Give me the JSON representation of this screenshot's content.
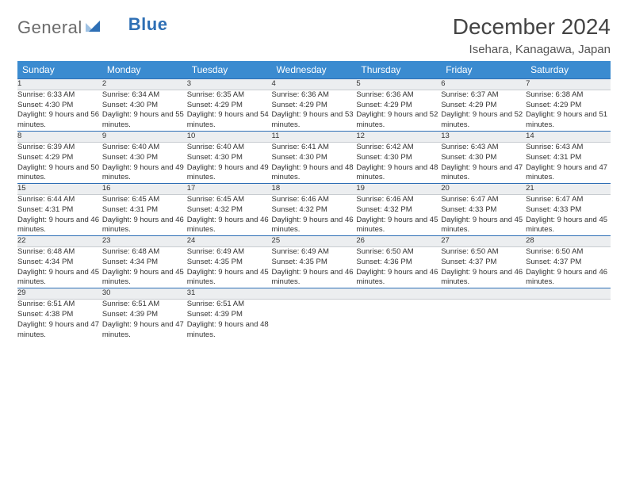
{
  "brand": {
    "part1": "General",
    "part2": "Blue"
  },
  "title": "December 2024",
  "location": "Isehara, Kanagawa, Japan",
  "colors": {
    "header_bg": "#3b8bd0",
    "header_text": "#ffffff",
    "daynum_bg": "#eceef0",
    "rule": "#2e6fb5",
    "body_text": "#333333",
    "title_text": "#444444",
    "logo_gray": "#6b6b6b",
    "logo_blue": "#2e6fb5"
  },
  "weekdays": [
    "Sunday",
    "Monday",
    "Tuesday",
    "Wednesday",
    "Thursday",
    "Friday",
    "Saturday"
  ],
  "labels": {
    "sunrise": "Sunrise",
    "sunset": "Sunset",
    "daylight": "Daylight"
  },
  "weeks": [
    [
      {
        "n": 1,
        "sr": "6:33 AM",
        "ss": "4:30 PM",
        "dl": "9 hours and 56 minutes."
      },
      {
        "n": 2,
        "sr": "6:34 AM",
        "ss": "4:30 PM",
        "dl": "9 hours and 55 minutes."
      },
      {
        "n": 3,
        "sr": "6:35 AM",
        "ss": "4:29 PM",
        "dl": "9 hours and 54 minutes."
      },
      {
        "n": 4,
        "sr": "6:36 AM",
        "ss": "4:29 PM",
        "dl": "9 hours and 53 minutes."
      },
      {
        "n": 5,
        "sr": "6:36 AM",
        "ss": "4:29 PM",
        "dl": "9 hours and 52 minutes."
      },
      {
        "n": 6,
        "sr": "6:37 AM",
        "ss": "4:29 PM",
        "dl": "9 hours and 52 minutes."
      },
      {
        "n": 7,
        "sr": "6:38 AM",
        "ss": "4:29 PM",
        "dl": "9 hours and 51 minutes."
      }
    ],
    [
      {
        "n": 8,
        "sr": "6:39 AM",
        "ss": "4:29 PM",
        "dl": "9 hours and 50 minutes."
      },
      {
        "n": 9,
        "sr": "6:40 AM",
        "ss": "4:30 PM",
        "dl": "9 hours and 49 minutes."
      },
      {
        "n": 10,
        "sr": "6:40 AM",
        "ss": "4:30 PM",
        "dl": "9 hours and 49 minutes."
      },
      {
        "n": 11,
        "sr": "6:41 AM",
        "ss": "4:30 PM",
        "dl": "9 hours and 48 minutes."
      },
      {
        "n": 12,
        "sr": "6:42 AM",
        "ss": "4:30 PM",
        "dl": "9 hours and 48 minutes."
      },
      {
        "n": 13,
        "sr": "6:43 AM",
        "ss": "4:30 PM",
        "dl": "9 hours and 47 minutes."
      },
      {
        "n": 14,
        "sr": "6:43 AM",
        "ss": "4:31 PM",
        "dl": "9 hours and 47 minutes."
      }
    ],
    [
      {
        "n": 15,
        "sr": "6:44 AM",
        "ss": "4:31 PM",
        "dl": "9 hours and 46 minutes."
      },
      {
        "n": 16,
        "sr": "6:45 AM",
        "ss": "4:31 PM",
        "dl": "9 hours and 46 minutes."
      },
      {
        "n": 17,
        "sr": "6:45 AM",
        "ss": "4:32 PM",
        "dl": "9 hours and 46 minutes."
      },
      {
        "n": 18,
        "sr": "6:46 AM",
        "ss": "4:32 PM",
        "dl": "9 hours and 46 minutes."
      },
      {
        "n": 19,
        "sr": "6:46 AM",
        "ss": "4:32 PM",
        "dl": "9 hours and 45 minutes."
      },
      {
        "n": 20,
        "sr": "6:47 AM",
        "ss": "4:33 PM",
        "dl": "9 hours and 45 minutes."
      },
      {
        "n": 21,
        "sr": "6:47 AM",
        "ss": "4:33 PM",
        "dl": "9 hours and 45 minutes."
      }
    ],
    [
      {
        "n": 22,
        "sr": "6:48 AM",
        "ss": "4:34 PM",
        "dl": "9 hours and 45 minutes."
      },
      {
        "n": 23,
        "sr": "6:48 AM",
        "ss": "4:34 PM",
        "dl": "9 hours and 45 minutes."
      },
      {
        "n": 24,
        "sr": "6:49 AM",
        "ss": "4:35 PM",
        "dl": "9 hours and 45 minutes."
      },
      {
        "n": 25,
        "sr": "6:49 AM",
        "ss": "4:35 PM",
        "dl": "9 hours and 46 minutes."
      },
      {
        "n": 26,
        "sr": "6:50 AM",
        "ss": "4:36 PM",
        "dl": "9 hours and 46 minutes."
      },
      {
        "n": 27,
        "sr": "6:50 AM",
        "ss": "4:37 PM",
        "dl": "9 hours and 46 minutes."
      },
      {
        "n": 28,
        "sr": "6:50 AM",
        "ss": "4:37 PM",
        "dl": "9 hours and 46 minutes."
      }
    ],
    [
      {
        "n": 29,
        "sr": "6:51 AM",
        "ss": "4:38 PM",
        "dl": "9 hours and 47 minutes."
      },
      {
        "n": 30,
        "sr": "6:51 AM",
        "ss": "4:39 PM",
        "dl": "9 hours and 47 minutes."
      },
      {
        "n": 31,
        "sr": "6:51 AM",
        "ss": "4:39 PM",
        "dl": "9 hours and 48 minutes."
      },
      null,
      null,
      null,
      null
    ]
  ]
}
